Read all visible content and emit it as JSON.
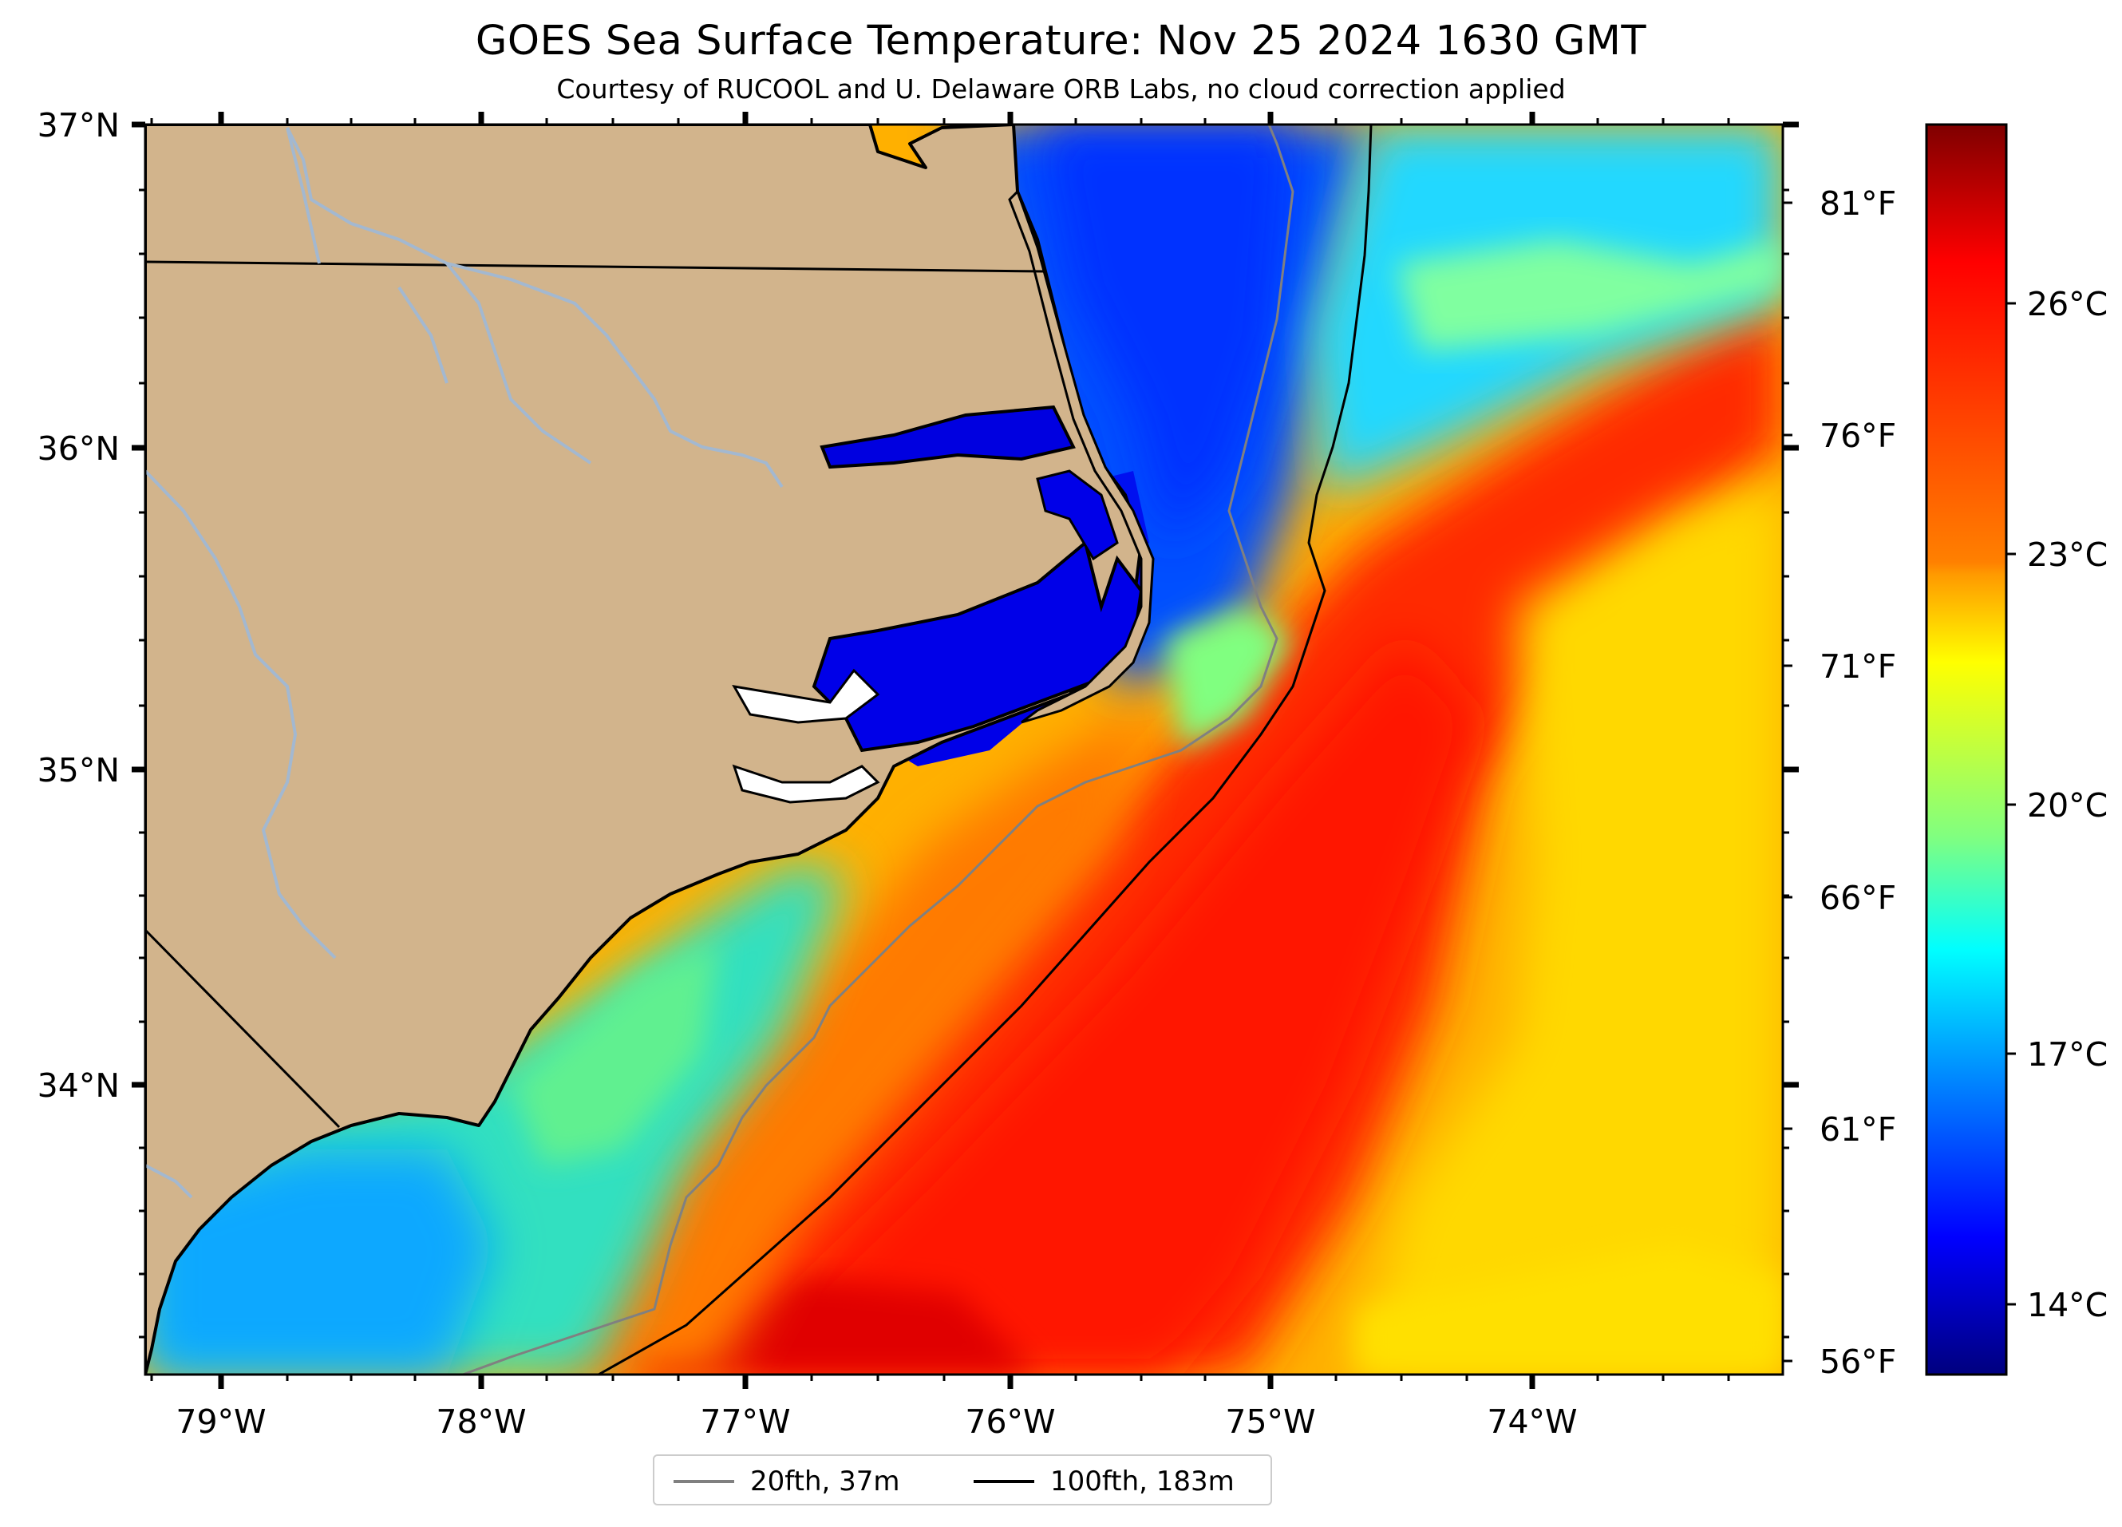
{
  "title": "GOES Sea Surface Temperature: Nov 25 2024 1630 GMT",
  "subtitle": "Courtesy of RUCOOL and U. Delaware ORB Labs, no cloud correction applied",
  "map": {
    "lat_ticks": [
      "37°N",
      "36°N",
      "35°N",
      "34°N"
    ],
    "lon_ticks": [
      "79°W",
      "78°W",
      "77°W",
      "76°W",
      "75°W",
      "74°W"
    ],
    "fahrenheit_ticks": [
      "81°F",
      "76°F",
      "71°F",
      "66°F",
      "61°F",
      "56°F"
    ],
    "colors": {
      "land": "#d2b48c",
      "rivers": "#a3b8d0"
    }
  },
  "colorbar": {
    "celsius_ticks": [
      "26°C",
      "23°C",
      "20°C",
      "17°C",
      "14°C"
    ],
    "colormap": "jet",
    "colors": [
      "#7f0000",
      "#ff0000",
      "#ff8000",
      "#ffff00",
      "#80ff80",
      "#00ffff",
      "#0080ff",
      "#0000ff",
      "#00007f"
    ]
  },
  "legend": {
    "items": [
      {
        "label": "20fth, 37m",
        "color": "#808080"
      },
      {
        "label": "100fth, 183m",
        "color": "#000000"
      }
    ]
  }
}
